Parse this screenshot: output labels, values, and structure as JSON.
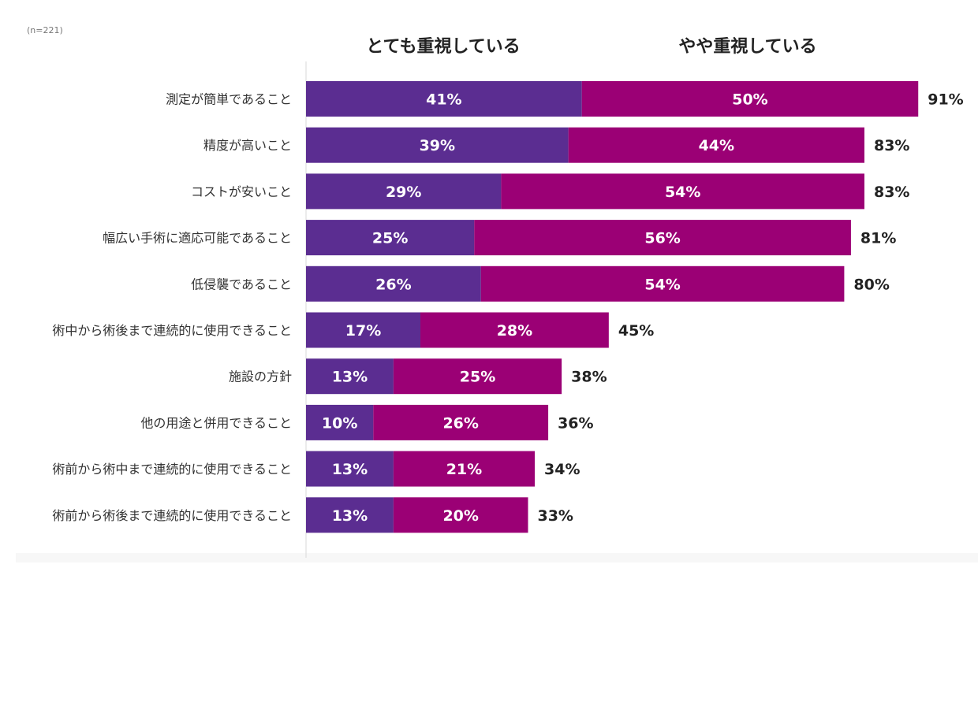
{
  "sample_note": "(n=221)",
  "chart_data": {
    "type": "bar",
    "orientation": "horizontal",
    "stacked": true,
    "categories": [
      "測定が簡単であること",
      "精度が高いこと",
      "コストが安いこと",
      "幅広い手術に適応可能であること",
      "低侵襲であること",
      "術中から術後まで連続的に使用できること",
      "施設の方針",
      "他の用途と併用できること",
      "術前から術中まで連続的に使用できること",
      "術前から術後まで連続的に使用できること"
    ],
    "series": [
      {
        "name": "とても重視している",
        "color": "#5b2d91",
        "values": [
          41,
          39,
          29,
          25,
          26,
          17,
          13,
          10,
          13,
          13
        ],
        "labels": [
          "41%",
          "39%",
          "29%",
          "25%",
          "26%",
          "17%",
          "13%",
          "10%",
          "13%",
          "13%"
        ]
      },
      {
        "name": "やや重視している",
        "color": "#9b0075",
        "values": [
          50,
          44,
          54,
          56,
          54,
          28,
          25,
          26,
          21,
          20
        ],
        "labels": [
          "50%",
          "44%",
          "54%",
          "56%",
          "54%",
          "28%",
          "25%",
          "26%",
          "21%",
          "20%"
        ]
      }
    ],
    "totals": [
      91,
      83,
      83,
      81,
      80,
      45,
      38,
      36,
      34,
      33
    ],
    "total_labels": [
      "91%",
      "83%",
      "83%",
      "81%",
      "80%",
      "45%",
      "38%",
      "36%",
      "34%",
      "33%"
    ],
    "xlim": [
      0,
      100
    ],
    "legend_position": "top",
    "grid": false
  }
}
